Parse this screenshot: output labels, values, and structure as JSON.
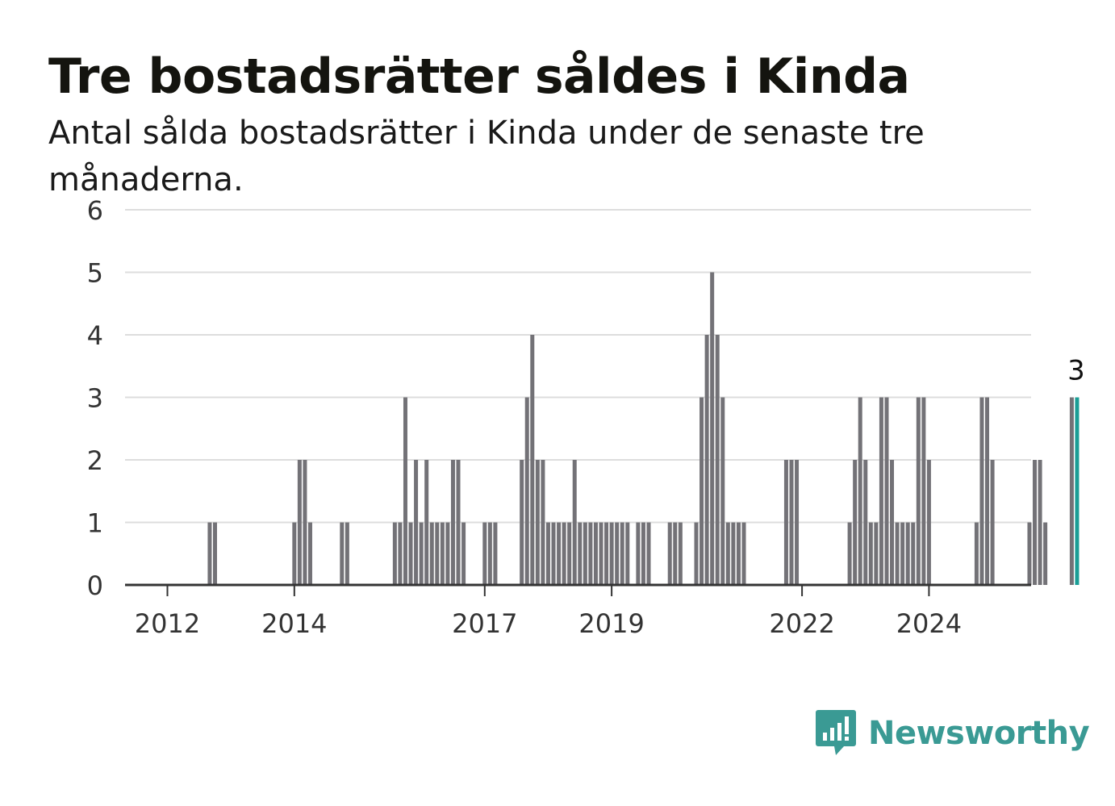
{
  "title": "Tre bostadsrätter såldes i Kinda",
  "subtitle": "Antal sålda bostadsrätter i Kinda under de senaste tre månaderna.",
  "brand": "Newsworthy",
  "colors": {
    "bar": "#737277",
    "highlight": "#1a9e96",
    "grid": "#dddddd",
    "axis": "#333333",
    "brand": "#3a9a94"
  },
  "chart_data": {
    "type": "bar",
    "ylim": [
      0,
      6
    ],
    "yticks": [
      "0",
      "1",
      "2",
      "3",
      "4",
      "5",
      "6"
    ],
    "xticks": [
      "2012",
      "2014",
      "2017",
      "2019",
      "2022",
      "2024"
    ],
    "grid": true,
    "highlight_label": "3",
    "series": [
      {
        "values": [
          0,
          0,
          0,
          0,
          0,
          0,
          0,
          0,
          1,
          1,
          0,
          0,
          0,
          0,
          0,
          0,
          0,
          0,
          0,
          0,
          0,
          0,
          0,
          0,
          1,
          2,
          2,
          1,
          0,
          0,
          0,
          0,
          0,
          1,
          1,
          0,
          0,
          0,
          0,
          0,
          0,
          0,
          0,
          1,
          1,
          3,
          1,
          2,
          1,
          2,
          1,
          1,
          1,
          1,
          2,
          2,
          1,
          0,
          0,
          0,
          1,
          1,
          1,
          0,
          0,
          0,
          0,
          2,
          3,
          4,
          2,
          2,
          1,
          1,
          1,
          1,
          1,
          2,
          1,
          1,
          1,
          1,
          1,
          1,
          1,
          1,
          1,
          1,
          0,
          1,
          1,
          1,
          0,
          0,
          0,
          1,
          1,
          1,
          0,
          0,
          1,
          3,
          4,
          5,
          4,
          3,
          1,
          1,
          1,
          1,
          0,
          0,
          0,
          0,
          0,
          0,
          0,
          2,
          2,
          2,
          0,
          0,
          0,
          0,
          0,
          0,
          0,
          0,
          0,
          1,
          2,
          3,
          2,
          1,
          1,
          3,
          3,
          2,
          1,
          1,
          1,
          1,
          3,
          3,
          2,
          0,
          0,
          0,
          0,
          0,
          0,
          0,
          0,
          1,
          3,
          3,
          2,
          0,
          0,
          0,
          0,
          0,
          0,
          1,
          2,
          2,
          1,
          0,
          0,
          0,
          0,
          3,
          3
        ]
      }
    ]
  }
}
